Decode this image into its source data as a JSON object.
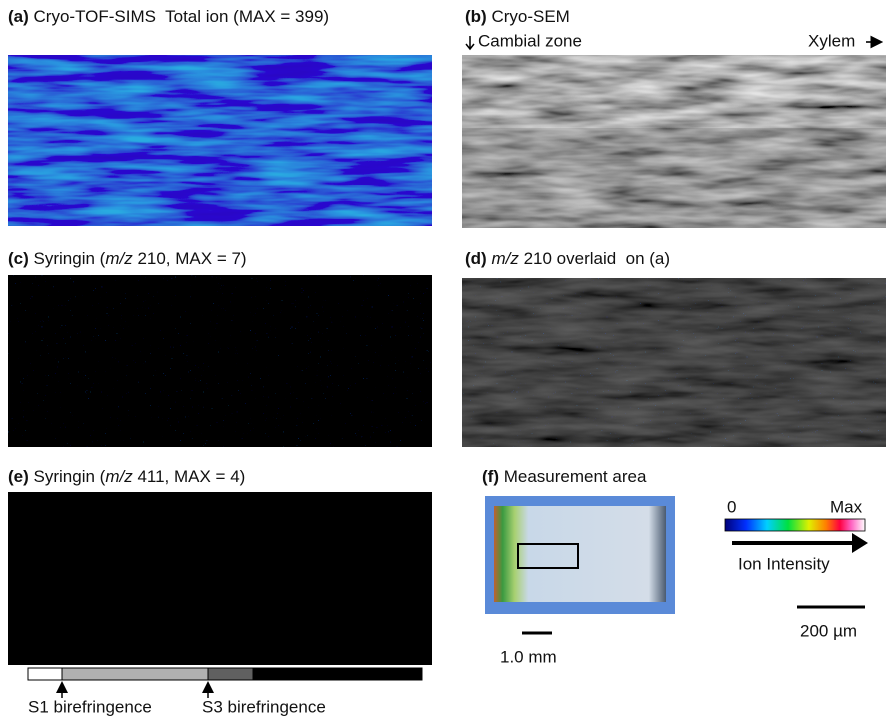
{
  "panels": [
    {
      "label": "(a)",
      "title_parts": [
        "Cryo-TOF-SIMS  Total ion (MAX = 399)"
      ]
    },
    {
      "label": "(b)",
      "title_parts": [
        "Cryo-SEM"
      ]
    },
    {
      "label": "(c)",
      "title_parts": [
        "Syringin (",
        "m/z",
        " 210, MAX = 7)"
      ]
    },
    {
      "label": "(d)",
      "title_parts": [
        "m/z",
        " 210 overlaid  on (a)"
      ]
    },
    {
      "label": "(e)",
      "title_parts": [
        "Syringin (",
        "m/z",
        " 411, MAX = 4)"
      ]
    },
    {
      "label": "(f)",
      "title_parts": [
        "Measurement area"
      ]
    }
  ],
  "direction": {
    "left": "Cambial zone",
    "right": "Xylem"
  },
  "colorbar": {
    "min_label": "0",
    "max_label": "Max",
    "caption": "Ion Intensity"
  },
  "scale_bars": {
    "micro": "200 µm",
    "macro": "1.0 mm"
  },
  "birefringence": {
    "s1": "S1 birefringence",
    "s3": "S3 birefringence"
  }
}
